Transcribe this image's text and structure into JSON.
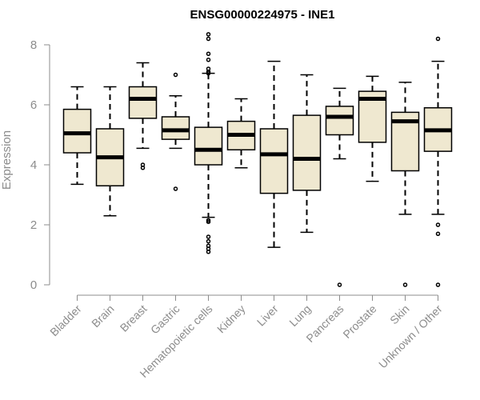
{
  "chart_data": {
    "type": "boxplot",
    "title": "ENSG00000224975 - INE1",
    "xlabel": "",
    "ylabel": "Expression",
    "ylim": [
      0,
      8.4
    ],
    "yticks": [
      0,
      2,
      4,
      6,
      8
    ],
    "box_color": "#efe8d0",
    "categories": [
      "Bladder",
      "Brain",
      "Breast",
      "Gastric",
      "Hematopoietic cells",
      "Kidney",
      "Liver",
      "Lung",
      "Pancreas",
      "Prostate",
      "Skin",
      "Unknown / Other"
    ],
    "boxes": [
      {
        "name": "Bladder",
        "whisker_low": 3.35,
        "q1": 4.4,
        "median": 5.05,
        "q3": 5.85,
        "whisker_high": 6.6,
        "outliers": []
      },
      {
        "name": "Brain",
        "whisker_low": 2.3,
        "q1": 3.3,
        "median": 4.25,
        "q3": 5.2,
        "whisker_high": 6.6,
        "outliers": []
      },
      {
        "name": "Breast",
        "whisker_low": 4.55,
        "q1": 5.55,
        "median": 6.2,
        "q3": 6.6,
        "whisker_high": 7.4,
        "outliers": [
          4.0,
          3.9
        ]
      },
      {
        "name": "Gastric",
        "whisker_low": 4.55,
        "q1": 4.85,
        "median": 5.15,
        "q3": 5.6,
        "whisker_high": 6.3,
        "outliers": [
          7.0,
          3.2
        ]
      },
      {
        "name": "Hematopoietic cells",
        "whisker_low": 2.25,
        "q1": 4.0,
        "median": 4.5,
        "q3": 5.25,
        "whisker_high": 7.05,
        "outliers": [
          8.35,
          8.2,
          7.7,
          7.5,
          7.2,
          7.1,
          7.05,
          2.15,
          2.1,
          1.6,
          1.45,
          1.3,
          1.2,
          1.1
        ]
      },
      {
        "name": "Kidney",
        "whisker_low": 3.9,
        "q1": 4.5,
        "median": 5.0,
        "q3": 5.45,
        "whisker_high": 6.2,
        "outliers": []
      },
      {
        "name": "Liver",
        "whisker_low": 1.25,
        "q1": 3.05,
        "median": 4.35,
        "q3": 5.2,
        "whisker_high": 7.45,
        "outliers": []
      },
      {
        "name": "Lung",
        "whisker_low": 1.75,
        "q1": 3.15,
        "median": 4.2,
        "q3": 5.65,
        "whisker_high": 7.0,
        "outliers": []
      },
      {
        "name": "Pancreas",
        "whisker_low": 4.2,
        "q1": 5.0,
        "median": 5.6,
        "q3": 5.95,
        "whisker_high": 6.55,
        "outliers": [
          0.0
        ]
      },
      {
        "name": "Prostate",
        "whisker_low": 3.45,
        "q1": 4.75,
        "median": 6.2,
        "q3": 6.45,
        "whisker_high": 6.95,
        "outliers": []
      },
      {
        "name": "Skin",
        "whisker_low": 2.35,
        "q1": 3.8,
        "median": 5.45,
        "q3": 5.75,
        "whisker_high": 6.75,
        "outliers": [
          0.0
        ]
      },
      {
        "name": "Unknown / Other",
        "whisker_low": 2.35,
        "q1": 4.45,
        "median": 5.15,
        "q3": 5.9,
        "whisker_high": 7.45,
        "outliers": [
          8.2,
          2.0,
          1.7,
          0.0
        ]
      }
    ]
  }
}
